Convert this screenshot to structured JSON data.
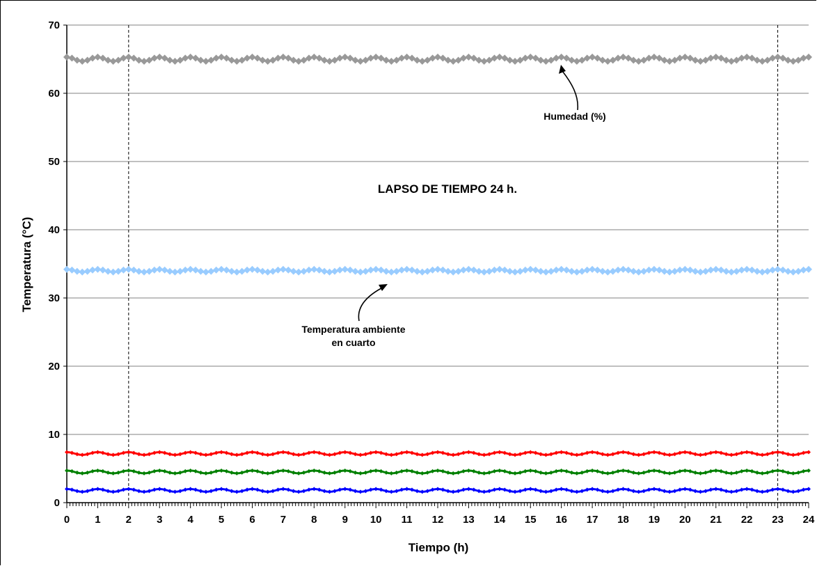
{
  "chart_data": {
    "type": "line",
    "title": "",
    "xlabel": "Tiempo  (h)",
    "ylabel": "Temperatura (°C)",
    "xlim": [
      0,
      24
    ],
    "ylim": [
      0,
      70
    ],
    "x_ticks": [
      0,
      1,
      2,
      3,
      4,
      5,
      6,
      7,
      8,
      9,
      10,
      11,
      12,
      13,
      14,
      15,
      16,
      17,
      18,
      19,
      20,
      21,
      22,
      23,
      24
    ],
    "y_ticks": [
      0,
      10,
      20,
      30,
      40,
      50,
      60,
      70
    ],
    "grid": true,
    "reference_lines_x": [
      2,
      23
    ],
    "series": [
      {
        "name": "Humedad (%)",
        "color": "#999999",
        "level": 65,
        "amplitude": 0.3
      },
      {
        "name": "Temperatura ambiente en cuarto",
        "color": "#99ccff",
        "level": 34,
        "amplitude": 0.2
      },
      {
        "color": "#ff0000",
        "level": 7.2,
        "amplitude": 0.2
      },
      {
        "color": "#008000",
        "level": 4.5,
        "amplitude": 0.2
      },
      {
        "color": "#0000ff",
        "level": 1.8,
        "amplitude": 0.2
      }
    ],
    "annotations": {
      "humedad_label": "Humedad (%)",
      "temp_label_line1": "Temperatura ambiente",
      "temp_label_line2": "en cuarto",
      "lapso": "LAPSO DE TIEMPO  24 h."
    }
  }
}
